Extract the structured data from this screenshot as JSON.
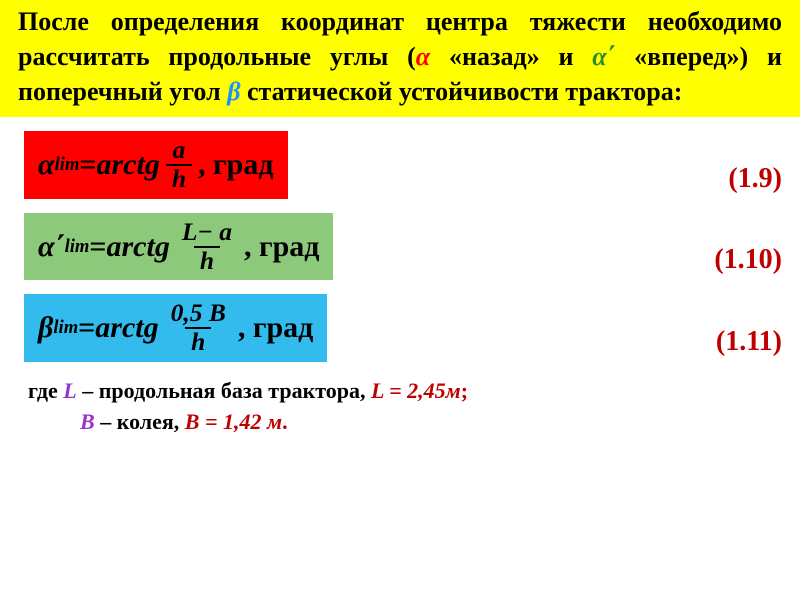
{
  "header": {
    "bg": "#ffff00",
    "pre": "После определения координат центра тяжести необходимо рассчитать продольные углы (",
    "alpha": "α",
    "mid1": " «назад» и ",
    "alpha_prime": "α΄",
    "mid2": " «вперед») и поперечный угол ",
    "beta": "β",
    "post": " статической устойчивости трактора:"
  },
  "formulas": [
    {
      "bg": "#ff0000",
      "lhs_sym": "α",
      "lhs_sub": "lim",
      "eq": " = ",
      "fn": "arctg ",
      "num": "a",
      "den": "h",
      "unit": " , град",
      "eqnum": "(1.9)"
    },
    {
      "bg": "#8cc97a",
      "lhs_sym": "α΄",
      "lhs_sub": "lim",
      "eq": " = ",
      "fn": "arctg ",
      "num": "L− a",
      "den": "h",
      "unit": " , град",
      "eqnum": "(1.10)"
    },
    {
      "bg": "#33bbee",
      "lhs_sym": "β",
      "lhs_sub": "lim",
      "eq": " = ",
      "fn": "arctg ",
      "num": "0,5 B",
      "den": "h",
      "unit": " , град",
      "eqnum": "(1.11)"
    }
  ],
  "footer": {
    "where": "где ",
    "Lvar": "L",
    "Ltext": " – продольная база трактора,  ",
    "Lval": "L = 2,45м",
    "semi": ";",
    "Bvar": "B",
    "Btext": " – колея,  ",
    "Bval": "B = 1,42 м",
    "period": "."
  }
}
